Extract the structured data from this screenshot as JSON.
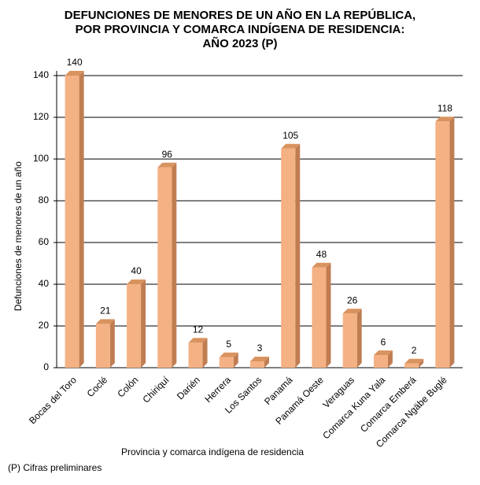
{
  "chart_data": {
    "type": "bar",
    "title": [
      "DEFUNCIONES DE MENORES DE UN AÑO EN LA REPÚBLICA,",
      "POR PROVINCIA Y COMARCA INDÍGENA DE RESIDENCIA:",
      "AÑO 2023 (P)"
    ],
    "categories": [
      "Bocas del Toro",
      "Coclé",
      "Colón",
      "Chiriquí",
      "Darién",
      "Herrera",
      "Los Santos",
      "Panamá",
      "Panamá Oeste",
      "Veraguas",
      "Comarca Kuna Yala",
      "Comarca Emberá",
      "Comarca Ngäbe Buglé"
    ],
    "values": [
      140,
      21,
      40,
      96,
      12,
      5,
      3,
      105,
      48,
      26,
      6,
      2,
      118
    ],
    "color": "#f4b183",
    "ylim": [
      0,
      140
    ],
    "yticks": [
      0,
      20,
      40,
      60,
      80,
      100,
      120,
      140
    ],
    "grid": true,
    "x_label": "Provincia  y comarca indígena  de residencia",
    "y_label": "Defunciones  de menores  de un año",
    "note": "(P) Cifras preliminares"
  }
}
